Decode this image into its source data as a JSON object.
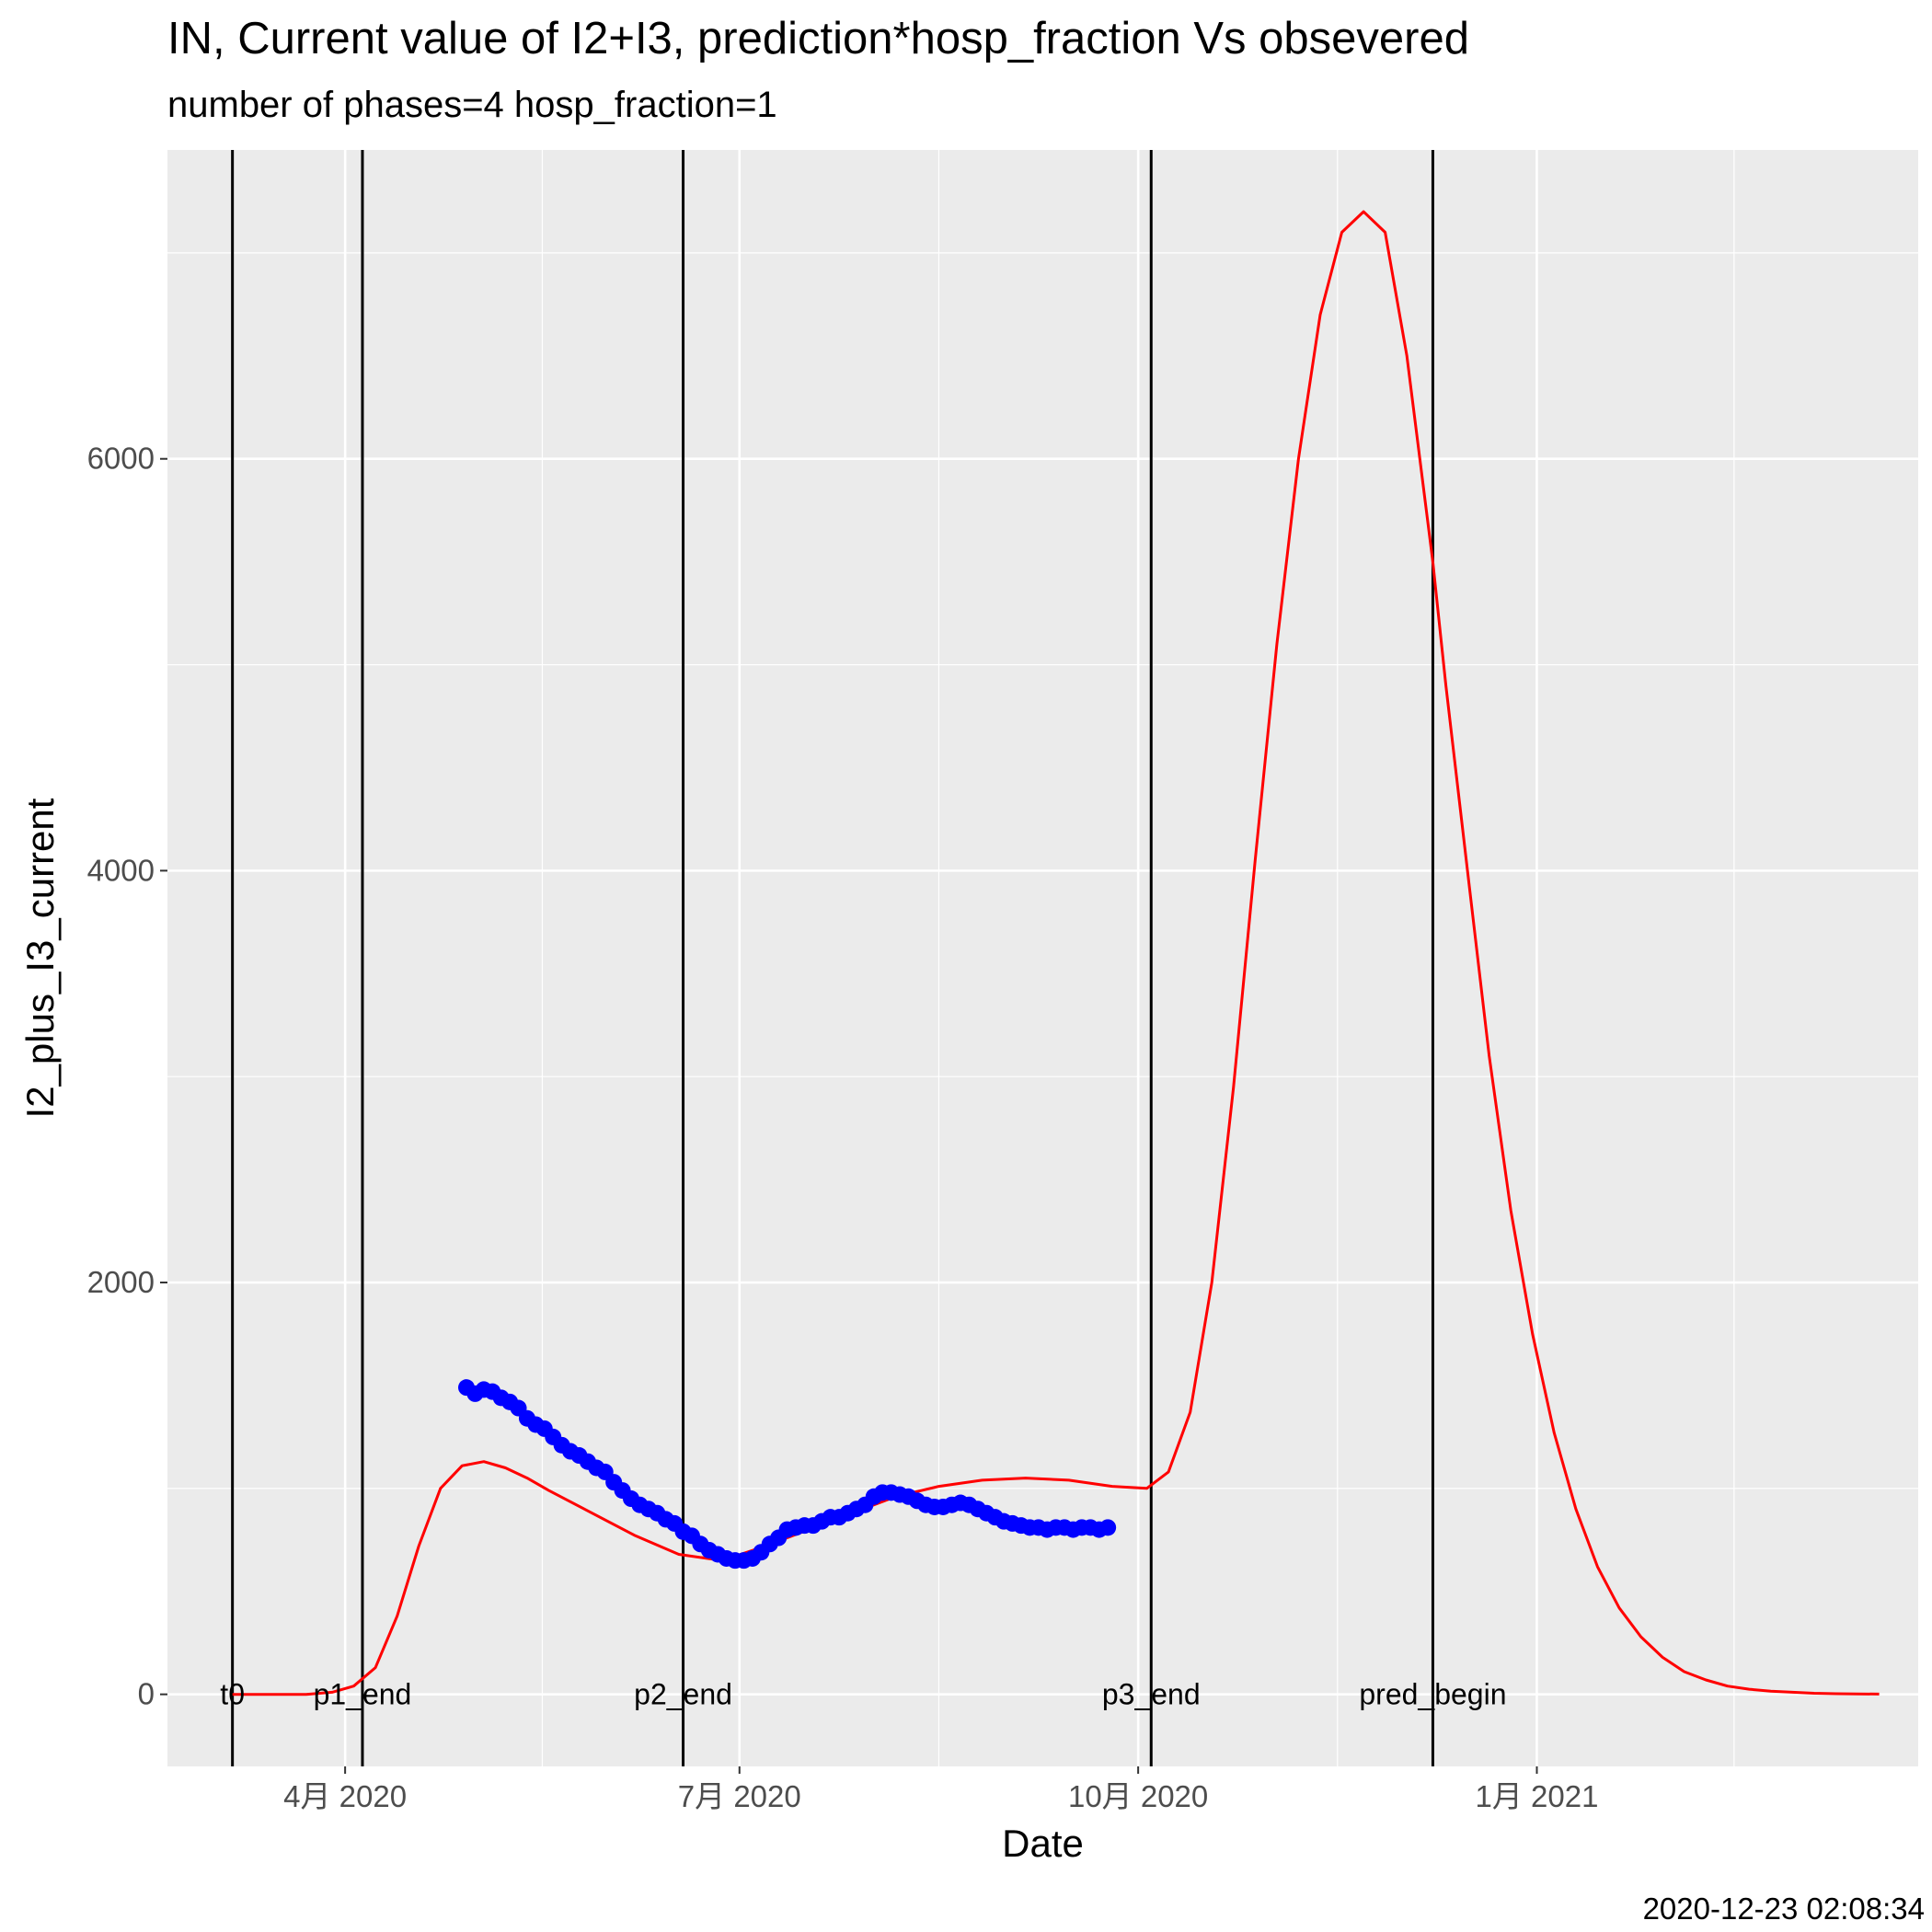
{
  "title": "IN, Current value of I2+I3, prediction*hosp_fraction Vs obsevered",
  "subtitle": "number of phases=4   hosp_fraction=1",
  "caption": "2020-12-23 02:08:34",
  "colors": {
    "panel": "#ebebeb",
    "grid": "#ffffff",
    "predicted": "#ff0000",
    "observed": "#0000ff",
    "vlines": "#000000"
  },
  "chart_data": {
    "type": "line",
    "xlabel": "Date",
    "ylabel": "I2_plus_I3_current",
    "xlim": [
      "2020-02-20",
      "2021-03-30"
    ],
    "ylim": [
      -350,
      7500
    ],
    "grid": true,
    "x_ticks": [
      {
        "date": "2020-04-01",
        "label": "4月 2020"
      },
      {
        "date": "2020-07-01",
        "label": "7月 2020"
      },
      {
        "date": "2020-10-01",
        "label": "10月 2020"
      },
      {
        "date": "2021-01-01",
        "label": "1月 2021"
      }
    ],
    "y_ticks": [
      0,
      2000,
      4000,
      6000
    ],
    "vlines": [
      {
        "date": "2020-03-06",
        "label": "t0"
      },
      {
        "date": "2020-04-05",
        "label": "p1_end"
      },
      {
        "date": "2020-06-18",
        "label": "p2_end"
      },
      {
        "date": "2020-10-04",
        "label": "p3_end"
      },
      {
        "date": "2020-12-08",
        "label": "pred_begin"
      }
    ],
    "series": [
      {
        "kind": "line",
        "x": [
          "2020-03-06",
          "2020-03-14",
          "2020-03-23",
          "2020-03-29",
          "2020-04-03",
          "2020-04-08",
          "2020-04-13",
          "2020-04-18",
          "2020-04-23",
          "2020-04-28",
          "2020-05-03",
          "2020-05-08",
          "2020-05-13",
          "2020-05-18",
          "2020-05-28",
          "2020-06-07",
          "2020-06-17",
          "2020-06-27",
          "2020-07-07",
          "2020-07-17",
          "2020-07-27",
          "2020-08-06",
          "2020-08-16",
          "2020-08-26",
          "2020-09-05",
          "2020-09-15",
          "2020-09-25",
          "2020-10-03",
          "2020-10-08",
          "2020-10-13",
          "2020-10-18",
          "2020-10-23",
          "2020-10-28",
          "2020-11-02",
          "2020-11-07",
          "2020-11-12",
          "2020-11-17",
          "2020-11-22",
          "2020-11-27",
          "2020-12-02",
          "2020-12-05",
          "2020-12-08",
          "2020-12-11",
          "2020-12-16",
          "2020-12-21",
          "2020-12-26",
          "2020-12-31",
          "2021-01-05",
          "2021-01-10",
          "2021-01-15",
          "2021-01-20",
          "2021-01-25",
          "2021-01-30",
          "2021-02-04",
          "2021-02-09",
          "2021-02-14",
          "2021-02-19",
          "2021-02-24",
          "2021-03-01",
          "2021-03-06",
          "2021-03-11",
          "2021-03-16",
          "2021-03-21"
        ],
        "values": [
          0,
          0,
          0,
          10,
          40,
          130,
          380,
          720,
          1000,
          1110,
          1130,
          1100,
          1050,
          990,
          880,
          770,
          680,
          650,
          720,
          800,
          880,
          960,
          1010,
          1040,
          1050,
          1040,
          1010,
          1000,
          1080,
          1370,
          2000,
          2950,
          4050,
          5100,
          6000,
          6700,
          7100,
          7200,
          7100,
          6500,
          6000,
          5500,
          4900,
          4000,
          3100,
          2350,
          1750,
          1270,
          900,
          620,
          420,
          280,
          180,
          110,
          70,
          40,
          25,
          15,
          10,
          5,
          3,
          2,
          1
        ]
      },
      {
        "kind": "points",
        "x": [
          "2020-04-29",
          "2020-05-01",
          "2020-05-03",
          "2020-05-05",
          "2020-05-07",
          "2020-05-09",
          "2020-05-11",
          "2020-05-13",
          "2020-05-15",
          "2020-05-17",
          "2020-05-19",
          "2020-05-21",
          "2020-05-23",
          "2020-05-25",
          "2020-05-27",
          "2020-05-29",
          "2020-05-31",
          "2020-06-02",
          "2020-06-04",
          "2020-06-06",
          "2020-06-08",
          "2020-06-10",
          "2020-06-12",
          "2020-06-14",
          "2020-06-16",
          "2020-06-18",
          "2020-06-20",
          "2020-06-22",
          "2020-06-24",
          "2020-06-26",
          "2020-06-28",
          "2020-06-30",
          "2020-07-02",
          "2020-07-04",
          "2020-07-06",
          "2020-07-08",
          "2020-07-10",
          "2020-07-12",
          "2020-07-14",
          "2020-07-16",
          "2020-07-18",
          "2020-07-20",
          "2020-07-22",
          "2020-07-24",
          "2020-07-26",
          "2020-07-28",
          "2020-07-30",
          "2020-08-01",
          "2020-08-03",
          "2020-08-05",
          "2020-08-07",
          "2020-08-09",
          "2020-08-11",
          "2020-08-13",
          "2020-08-15",
          "2020-08-17",
          "2020-08-19",
          "2020-08-21",
          "2020-08-23",
          "2020-08-25",
          "2020-08-27",
          "2020-08-29",
          "2020-08-31",
          "2020-09-02",
          "2020-09-04",
          "2020-09-06",
          "2020-09-08",
          "2020-09-10",
          "2020-09-12",
          "2020-09-14",
          "2020-09-16",
          "2020-09-18",
          "2020-09-20",
          "2020-09-22",
          "2020-09-24"
        ],
        "values": [
          1490,
          1460,
          1480,
          1470,
          1440,
          1420,
          1390,
          1340,
          1310,
          1290,
          1250,
          1210,
          1180,
          1160,
          1130,
          1100,
          1080,
          1030,
          990,
          950,
          920,
          900,
          880,
          850,
          830,
          790,
          770,
          730,
          700,
          680,
          660,
          650,
          650,
          660,
          690,
          730,
          760,
          800,
          810,
          820,
          820,
          840,
          860,
          860,
          880,
          900,
          920,
          960,
          980,
          980,
          970,
          960,
          940,
          920,
          910,
          910,
          920,
          930,
          920,
          900,
          880,
          860,
          840,
          830,
          820,
          810,
          810,
          800,
          810,
          810,
          800,
          810,
          810,
          800,
          810
        ]
      }
    ]
  }
}
